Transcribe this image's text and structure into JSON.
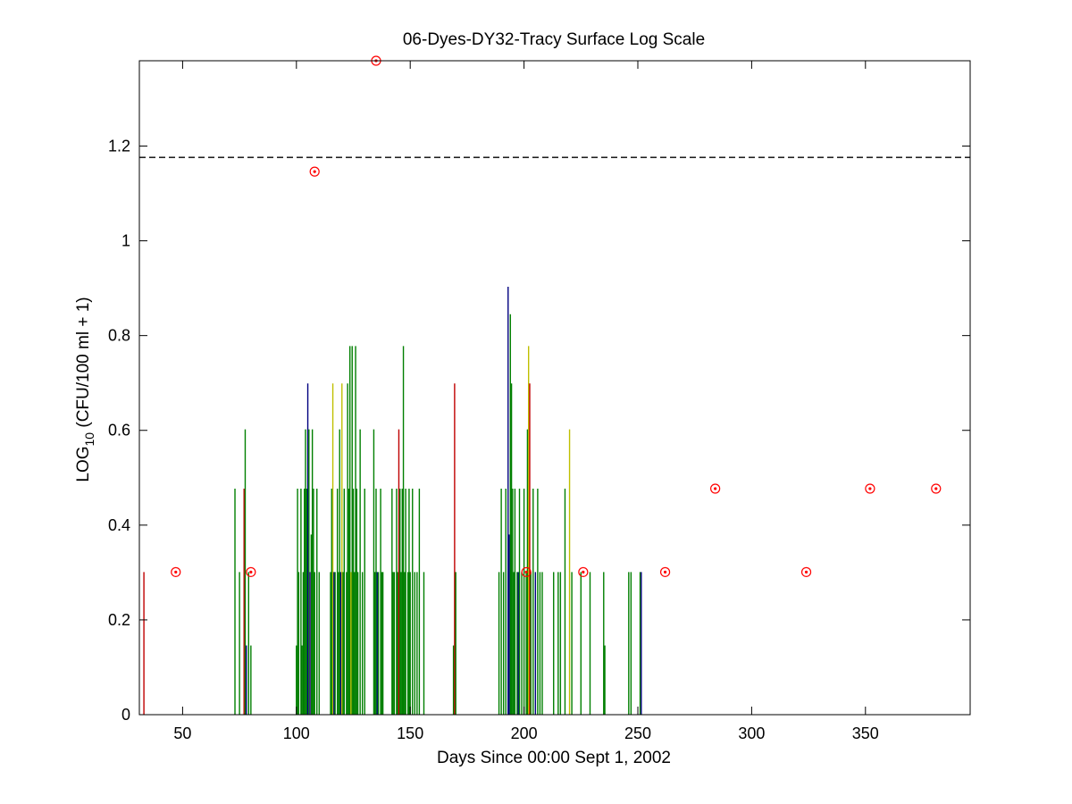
{
  "chart_data": {
    "type": "bar",
    "title": "06-Dyes-DY32-Tracy Surface Log Scale",
    "xlabel": "Days Since 00:00 Sept 1, 2002",
    "ylabel_main": "LOG",
    "ylabel_sub": "10",
    "ylabel_rest": " (CFU/100 ml + 1)",
    "xlim": [
      31,
      396
    ],
    "ylim": [
      0,
      1.38
    ],
    "xticks": [
      50,
      100,
      150,
      200,
      250,
      300,
      350
    ],
    "yticks": [
      0,
      0.2,
      0.4,
      0.6,
      0.8,
      1,
      1.2
    ],
    "ytick_labels": [
      "0",
      "0.2",
      "0.4",
      "0.6",
      "0.8",
      "1",
      "1.2"
    ],
    "threshold": 1.176,
    "colors": {
      "green": "#007f00",
      "blue": "#00007f",
      "red": "#bf0000",
      "gold": "#bfbf00",
      "purple": "#5f00bf",
      "marker": "#ff0000",
      "threshold": "#000000"
    },
    "bars": [
      {
        "x": 33,
        "y": 0.301,
        "c": "red"
      },
      {
        "x": 73,
        "y": 0.477,
        "c": "green"
      },
      {
        "x": 75,
        "y": 0.301,
        "c": "green"
      },
      {
        "x": 77,
        "y": 0.477,
        "c": "red"
      },
      {
        "x": 77.5,
        "y": 0.602,
        "c": "green"
      },
      {
        "x": 78,
        "y": 0.146,
        "c": "blue"
      },
      {
        "x": 79,
        "y": 0.301,
        "c": "green"
      },
      {
        "x": 80,
        "y": 0.146,
        "c": "green"
      },
      {
        "x": 100,
        "y": 0.146,
        "c": "green"
      },
      {
        "x": 100.5,
        "y": 0.477,
        "c": "green"
      },
      {
        "x": 101,
        "y": 0.301,
        "c": "green"
      },
      {
        "x": 102,
        "y": 0.477,
        "c": "green"
      },
      {
        "x": 102.5,
        "y": 0.146,
        "c": "green"
      },
      {
        "x": 103,
        "y": 0.301,
        "c": "green"
      },
      {
        "x": 103.5,
        "y": 0.477,
        "c": "green"
      },
      {
        "x": 104,
        "y": 0.602,
        "c": "green"
      },
      {
        "x": 104.5,
        "y": 0.477,
        "c": "green"
      },
      {
        "x": 105,
        "y": 0.699,
        "c": "blue"
      },
      {
        "x": 105.5,
        "y": 0.602,
        "c": "green"
      },
      {
        "x": 106,
        "y": 0.301,
        "c": "purple"
      },
      {
        "x": 106.5,
        "y": 0.38,
        "c": "green"
      },
      {
        "x": 107,
        "y": 0.602,
        "c": "green"
      },
      {
        "x": 107.5,
        "y": 0.477,
        "c": "green"
      },
      {
        "x": 108,
        "y": 0.301,
        "c": "green"
      },
      {
        "x": 109,
        "y": 0.477,
        "c": "green"
      },
      {
        "x": 110,
        "y": 0.301,
        "c": "green"
      },
      {
        "x": 115,
        "y": 0.301,
        "c": "green"
      },
      {
        "x": 115.5,
        "y": 0.477,
        "c": "green"
      },
      {
        "x": 116,
        "y": 0.699,
        "c": "gold"
      },
      {
        "x": 116.5,
        "y": 0.301,
        "c": "blue"
      },
      {
        "x": 117,
        "y": 0.301,
        "c": "green"
      },
      {
        "x": 118,
        "y": 0.477,
        "c": "green"
      },
      {
        "x": 118.5,
        "y": 0.301,
        "c": "green"
      },
      {
        "x": 119,
        "y": 0.602,
        "c": "green"
      },
      {
        "x": 119.5,
        "y": 0.301,
        "c": "blue"
      },
      {
        "x": 120,
        "y": 0.699,
        "c": "gold"
      },
      {
        "x": 120.5,
        "y": 0.301,
        "c": "green"
      },
      {
        "x": 121,
        "y": 0.477,
        "c": "green"
      },
      {
        "x": 122,
        "y": 0.301,
        "c": "green"
      },
      {
        "x": 122.5,
        "y": 0.699,
        "c": "green"
      },
      {
        "x": 123,
        "y": 0.477,
        "c": "green"
      },
      {
        "x": 123.5,
        "y": 0.778,
        "c": "green"
      },
      {
        "x": 124,
        "y": 0.301,
        "c": "gold"
      },
      {
        "x": 124.5,
        "y": 0.778,
        "c": "green"
      },
      {
        "x": 125,
        "y": 0.477,
        "c": "green"
      },
      {
        "x": 125.5,
        "y": 0.301,
        "c": "green"
      },
      {
        "x": 126,
        "y": 0.778,
        "c": "green"
      },
      {
        "x": 126.5,
        "y": 0.477,
        "c": "green"
      },
      {
        "x": 127,
        "y": 0.301,
        "c": "green"
      },
      {
        "x": 128,
        "y": 0.602,
        "c": "green"
      },
      {
        "x": 129,
        "y": 0.301,
        "c": "green"
      },
      {
        "x": 130,
        "y": 0.477,
        "c": "green"
      },
      {
        "x": 134,
        "y": 0.602,
        "c": "green"
      },
      {
        "x": 134.5,
        "y": 0.301,
        "c": "green"
      },
      {
        "x": 135,
        "y": 0.477,
        "c": "green"
      },
      {
        "x": 135.5,
        "y": 0.301,
        "c": "blue"
      },
      {
        "x": 136,
        "y": 0.301,
        "c": "green"
      },
      {
        "x": 137,
        "y": 0.477,
        "c": "green"
      },
      {
        "x": 137.5,
        "y": 0.301,
        "c": "green"
      },
      {
        "x": 138,
        "y": 0.301,
        "c": "green"
      },
      {
        "x": 142,
        "y": 0.477,
        "c": "green"
      },
      {
        "x": 142.5,
        "y": 0.301,
        "c": "green"
      },
      {
        "x": 143,
        "y": 0.301,
        "c": "green"
      },
      {
        "x": 144,
        "y": 0.477,
        "c": "green"
      },
      {
        "x": 144.5,
        "y": 0.301,
        "c": "green"
      },
      {
        "x": 145,
        "y": 0.602,
        "c": "red"
      },
      {
        "x": 145.5,
        "y": 0.477,
        "c": "green"
      },
      {
        "x": 146,
        "y": 0.301,
        "c": "green"
      },
      {
        "x": 146.5,
        "y": 0.477,
        "c": "green"
      },
      {
        "x": 147,
        "y": 0.778,
        "c": "green"
      },
      {
        "x": 147.5,
        "y": 0.301,
        "c": "green"
      },
      {
        "x": 148,
        "y": 0.477,
        "c": "green"
      },
      {
        "x": 149,
        "y": 0.301,
        "c": "green"
      },
      {
        "x": 149.5,
        "y": 0.477,
        "c": "green"
      },
      {
        "x": 150,
        "y": 0.301,
        "c": "green"
      },
      {
        "x": 151,
        "y": 0.477,
        "c": "green"
      },
      {
        "x": 152,
        "y": 0.301,
        "c": "green"
      },
      {
        "x": 153,
        "y": 0.301,
        "c": "green"
      },
      {
        "x": 154,
        "y": 0.477,
        "c": "green"
      },
      {
        "x": 156,
        "y": 0.301,
        "c": "green"
      },
      {
        "x": 169,
        "y": 0.146,
        "c": "green"
      },
      {
        "x": 169.5,
        "y": 0.699,
        "c": "red"
      },
      {
        "x": 170,
        "y": 0.301,
        "c": "green"
      },
      {
        "x": 189,
        "y": 0.301,
        "c": "green"
      },
      {
        "x": 190,
        "y": 0.477,
        "c": "green"
      },
      {
        "x": 191,
        "y": 0.301,
        "c": "green"
      },
      {
        "x": 192,
        "y": 0.477,
        "c": "green"
      },
      {
        "x": 193,
        "y": 0.903,
        "c": "blue"
      },
      {
        "x": 193.5,
        "y": 0.38,
        "c": "blue"
      },
      {
        "x": 194,
        "y": 0.845,
        "c": "green"
      },
      {
        "x": 194.5,
        "y": 0.699,
        "c": "green"
      },
      {
        "x": 195,
        "y": 0.477,
        "c": "green"
      },
      {
        "x": 195.5,
        "y": 0.301,
        "c": "green"
      },
      {
        "x": 196,
        "y": 0.477,
        "c": "green"
      },
      {
        "x": 197,
        "y": 0.301,
        "c": "green"
      },
      {
        "x": 197.5,
        "y": 0.301,
        "c": "blue"
      },
      {
        "x": 198,
        "y": 0.477,
        "c": "green"
      },
      {
        "x": 199,
        "y": 0.301,
        "c": "green"
      },
      {
        "x": 200,
        "y": 0.477,
        "c": "green"
      },
      {
        "x": 201,
        "y": 0.301,
        "c": "green"
      },
      {
        "x": 201.5,
        "y": 0.602,
        "c": "green"
      },
      {
        "x": 202,
        "y": 0.778,
        "c": "gold"
      },
      {
        "x": 202.5,
        "y": 0.699,
        "c": "red"
      },
      {
        "x": 203,
        "y": 0.301,
        "c": "green"
      },
      {
        "x": 204,
        "y": 0.477,
        "c": "green"
      },
      {
        "x": 205,
        "y": 0.301,
        "c": "blue"
      },
      {
        "x": 206,
        "y": 0.477,
        "c": "green"
      },
      {
        "x": 207,
        "y": 0.301,
        "c": "green"
      },
      {
        "x": 208,
        "y": 0.301,
        "c": "green"
      },
      {
        "x": 213,
        "y": 0.301,
        "c": "green"
      },
      {
        "x": 215,
        "y": 0.301,
        "c": "green"
      },
      {
        "x": 216,
        "y": 0.301,
        "c": "green"
      },
      {
        "x": 218,
        "y": 0.477,
        "c": "green"
      },
      {
        "x": 220,
        "y": 0.602,
        "c": "gold"
      },
      {
        "x": 221,
        "y": 0.301,
        "c": "green"
      },
      {
        "x": 225,
        "y": 0.301,
        "c": "green"
      },
      {
        "x": 229,
        "y": 0.301,
        "c": "green"
      },
      {
        "x": 235,
        "y": 0.301,
        "c": "green"
      },
      {
        "x": 235.5,
        "y": 0.146,
        "c": "green"
      },
      {
        "x": 246,
        "y": 0.301,
        "c": "green"
      },
      {
        "x": 247,
        "y": 0.301,
        "c": "green"
      },
      {
        "x": 251,
        "y": 0.301,
        "c": "green"
      },
      {
        "x": 251.5,
        "y": 0.301,
        "c": "blue"
      }
    ],
    "markers": [
      {
        "x": 47,
        "y": 0.301
      },
      {
        "x": 80,
        "y": 0.301
      },
      {
        "x": 108,
        "y": 1.146
      },
      {
        "x": 135,
        "y": 1.38
      },
      {
        "x": 201,
        "y": 0.301
      },
      {
        "x": 226,
        "y": 0.301
      },
      {
        "x": 262,
        "y": 0.301
      },
      {
        "x": 284,
        "y": 0.477
      },
      {
        "x": 324,
        "y": 0.301
      },
      {
        "x": 352,
        "y": 0.477
      },
      {
        "x": 381,
        "y": 0.477
      }
    ]
  }
}
